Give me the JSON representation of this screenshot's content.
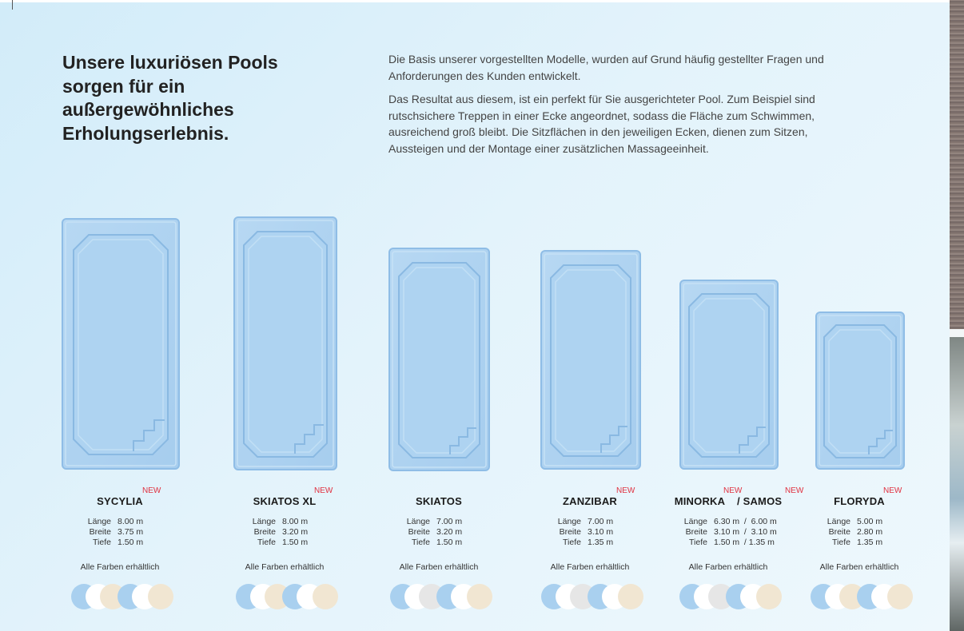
{
  "headline": "Unsere luxuriösen Pools sorgen für ein außergewöhnliches Erholungserlebnis.",
  "intro": {
    "p1": "Die Basis unserer vorgestellten Modelle, wurden auf Grund häufig gestellter Fragen und Anforderungen des Kunden entwickelt.",
    "p2": "Das Resultat aus diesem, ist ein perfekt für Sie ausgerichteter Pool. Zum Beispiel sind rutschsichere Treppen in einer Ecke angeordnet, sodass die Fläche zum Schwimmen, ausreichend groß bleibt. Die Sitzflächen in den jeweiligen Ecken, dienen zum Sitzen, Aussteigen und der Montage einer zusätzlichen Massageeinheit."
  },
  "labels": {
    "laenge": "Länge",
    "breite": "Breite",
    "tiefe": "Tiefe"
  },
  "colors_label": "Alle Farben erhältlich",
  "new_badge": "NEW",
  "swatch_colors": [
    "#a9d0ef",
    "#ffffff",
    "#e6e6e6",
    "#f1e6d2"
  ],
  "pool_color": "#a6cdee",
  "models": [
    {
      "name": "SYCYLIA",
      "laenge": "8.00 m",
      "breite": "3.75 m",
      "tiefe": "1.50 m"
    },
    {
      "name": "SKIATOS XL",
      "laenge": "8.00 m",
      "breite": "3.20 m",
      "tiefe": "1.50 m"
    },
    {
      "name": "SKIATOS",
      "laenge": "7.00 m",
      "breite": "3.20 m",
      "tiefe": "1.50 m"
    },
    {
      "name": "ZANZIBAR",
      "laenge": "7.00 m",
      "breite": "3.10 m",
      "tiefe": "1.35 m"
    },
    {
      "name": "MINORKA    / SAMOS",
      "laenge": "6.30 m  /  6.00 m",
      "breite": "3.10 m  /  3.10 m",
      "tiefe": "1.50 m  / 1.35 m"
    },
    {
      "name": "FLORYDA",
      "laenge": "5.00 m",
      "breite": "2.80 m",
      "tiefe": "1.35 m"
    }
  ]
}
